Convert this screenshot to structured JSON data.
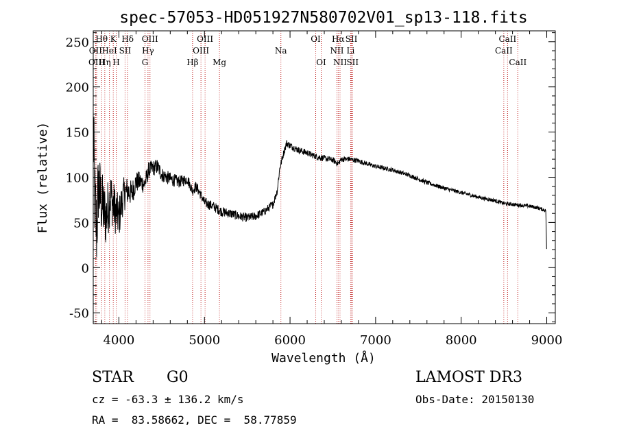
{
  "chart_data": {
    "type": "line",
    "title": "spec-57053-HD051927N580702V01_sp13-118.fits",
    "xlabel": "Wavelength (Å)",
    "ylabel": "Flux (relative)",
    "xlim": [
      3700,
      9100
    ],
    "ylim": [
      -62,
      262
    ],
    "xticks": [
      4000,
      5000,
      6000,
      7000,
      8000,
      9000
    ],
    "yticks": [
      -50,
      0,
      50,
      100,
      150,
      200,
      250
    ],
    "spectrum_keypoints": [
      [
        3700,
        150
      ],
      [
        3720,
        70
      ],
      [
        3740,
        40
      ],
      [
        3760,
        90
      ],
      [
        3800,
        70
      ],
      [
        3850,
        55
      ],
      [
        3900,
        80
      ],
      [
        3950,
        65
      ],
      [
        4000,
        55
      ],
      [
        4050,
        80
      ],
      [
        4100,
        85
      ],
      [
        4150,
        82
      ],
      [
        4200,
        95
      ],
      [
        4250,
        95
      ],
      [
        4300,
        92
      ],
      [
        4350,
        108
      ],
      [
        4400,
        110
      ],
      [
        4450,
        112
      ],
      [
        4500,
        103
      ],
      [
        4600,
        98
      ],
      [
        4700,
        95
      ],
      [
        4800,
        98
      ],
      [
        4860,
        85
      ],
      [
        4900,
        90
      ],
      [
        4950,
        82
      ],
      [
        5000,
        72
      ],
      [
        5100,
        68
      ],
      [
        5200,
        62
      ],
      [
        5300,
        60
      ],
      [
        5400,
        57
      ],
      [
        5500,
        55
      ],
      [
        5600,
        57
      ],
      [
        5700,
        62
      ],
      [
        5800,
        70
      ],
      [
        5850,
        85
      ],
      [
        5880,
        110
      ],
      [
        5920,
        125
      ],
      [
        5960,
        138
      ],
      [
        6000,
        135
      ],
      [
        6100,
        130
      ],
      [
        6200,
        127
      ],
      [
        6300,
        123
      ],
      [
        6400,
        121
      ],
      [
        6500,
        119
      ],
      [
        6560,
        115
      ],
      [
        6600,
        120
      ],
      [
        6700,
        120
      ],
      [
        6800,
        118
      ],
      [
        6900,
        115
      ],
      [
        7000,
        112
      ],
      [
        7200,
        108
      ],
      [
        7400,
        102
      ],
      [
        7600,
        94
      ],
      [
        7800,
        88
      ],
      [
        8000,
        83
      ],
      [
        8200,
        78
      ],
      [
        8400,
        74
      ],
      [
        8500,
        71
      ],
      [
        8600,
        70
      ],
      [
        8700,
        69
      ],
      [
        8800,
        68
      ],
      [
        8900,
        66
      ],
      [
        8990,
        63
      ],
      [
        9000,
        10
      ]
    ],
    "noise_amplitude": [
      [
        3700,
        55
      ],
      [
        3800,
        38
      ],
      [
        3900,
        30
      ],
      [
        4000,
        24
      ],
      [
        4100,
        16
      ],
      [
        4200,
        12
      ],
      [
        4400,
        9
      ],
      [
        4800,
        6
      ],
      [
        5500,
        5
      ],
      [
        6000,
        4
      ],
      [
        7000,
        2.5
      ],
      [
        9000,
        2
      ]
    ],
    "spectral_lines": [
      {
        "label": "Hθ",
        "wavelength": 3798,
        "row": 1
      },
      {
        "label": "OII",
        "wavelength": 3727,
        "row": 2
      },
      {
        "label": "OIII",
        "wavelength": 3740,
        "row": 3
      },
      {
        "label": "K",
        "wavelength": 3934,
        "row": 1
      },
      {
        "label": "HeI",
        "wavelength": 3889,
        "row": 2
      },
      {
        "label": "Hη",
        "wavelength": 3835,
        "row": 3
      },
      {
        "label": "Hδ",
        "wavelength": 4102,
        "row": 1
      },
      {
        "label": "SII",
        "wavelength": 4072,
        "row": 2
      },
      {
        "label": "H",
        "wavelength": 3969,
        "row": 3
      },
      {
        "label": "OIII",
        "wavelength": 4363,
        "row": 1
      },
      {
        "label": "Hγ",
        "wavelength": 4340,
        "row": 2
      },
      {
        "label": "G",
        "wavelength": 4305,
        "row": 3
      },
      {
        "label": "OIII",
        "wavelength": 5007,
        "row": 1
      },
      {
        "label": "OIII",
        "wavelength": 4959,
        "row": 2
      },
      {
        "label": "Hβ",
        "wavelength": 4861,
        "row": 3
      },
      {
        "label": "Mg",
        "wavelength": 5175,
        "row": 3
      },
      {
        "label": "Na",
        "wavelength": 5893,
        "row": 2
      },
      {
        "label": "OI",
        "wavelength": 6300,
        "row": 1
      },
      {
        "label": "OI",
        "wavelength": 6364,
        "row": 3
      },
      {
        "label": "Hα",
        "wavelength": 6563,
        "row": 1
      },
      {
        "label": "NII",
        "wavelength": 6548,
        "row": 2
      },
      {
        "label": "NII",
        "wavelength": 6584,
        "row": 3
      },
      {
        "label": "SII",
        "wavelength": 6717,
        "row": 1
      },
      {
        "label": "Li",
        "wavelength": 6708,
        "row": 2
      },
      {
        "label": "SII",
        "wavelength": 6731,
        "row": 3
      },
      {
        "label": "CaII",
        "wavelength": 8542,
        "row": 1
      },
      {
        "label": "CaII",
        "wavelength": 8498,
        "row": 2
      },
      {
        "label": "CaII",
        "wavelength": 8662,
        "row": 3
      }
    ]
  },
  "info": {
    "object_class": "STAR",
    "subclass": "G0",
    "survey": "LAMOST DR3",
    "redshift_line": "cz = -63.3 ± 136.2 km/s",
    "obs_date_line": "Obs-Date: 20150130",
    "coords_line": "RA =  83.58662, DEC =  58.77859"
  }
}
